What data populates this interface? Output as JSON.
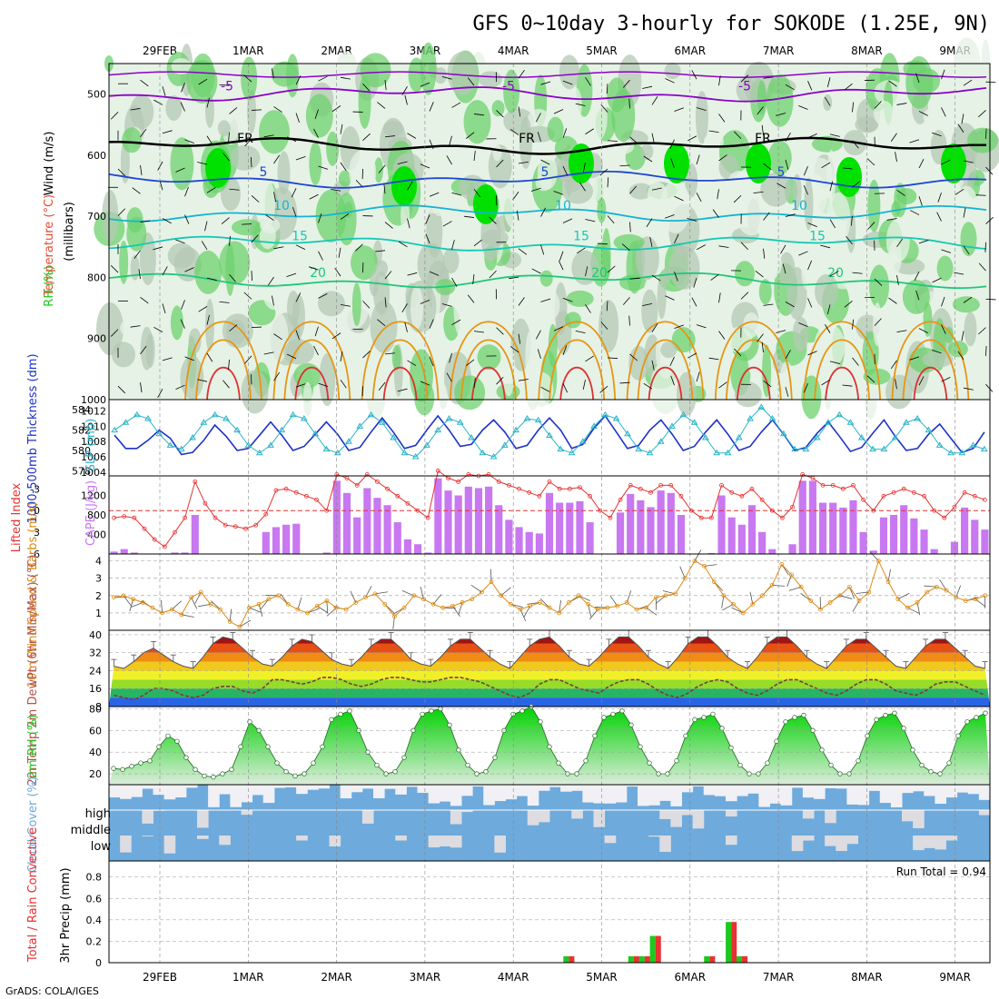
{
  "title": "GFS 0~10day 3-hourly for SOKODE (1.25E, 9N)",
  "credit": "GrADS: COLA/IGES",
  "dates": [
    "29FEB",
    "1MAR",
    "2MAR",
    "3MAR",
    "4MAR",
    "5MAR",
    "6MAR",
    "7MAR",
    "8MAR",
    "9MAR"
  ],
  "colors": {
    "rh_light": "#e6f2e6",
    "rh_mid": "#b4c8b4",
    "rh_green": "#6ed26e",
    "rh_bright": "#00e100",
    "wind_purple": "#8c00c8",
    "temp_blue": "#1e46d2",
    "temp_cyan": "#14b4d2",
    "temp_teal": "#14c8b4",
    "temp_green": "#1ec878",
    "temp_orange": "#e69614",
    "temp_red": "#dc3232",
    "thickness": "#1e32c8",
    "slp": "#28b4c8",
    "lifted": "#e63232",
    "cape": "#c878f0",
    "wind10": "#dc8c14",
    "rh2m": "#00c800",
    "cloud": "#6eaadc",
    "precip_total": "#1ec81e",
    "precip_conv": "#e63232"
  },
  "chart_data": [
    {
      "type": "heatmap",
      "name_labels": {
        "rh": "RH (%)",
        "temp": "Temperature (°C)",
        "wind": "Wind (m/s)",
        "ylabel": "(millibars)"
      },
      "ylim": [
        1000,
        450
      ],
      "y_ticks": [
        500,
        600,
        700,
        800,
        900,
        1000
      ],
      "isotherms": [
        {
          "value": -5,
          "label": "-5",
          "level": 500
        },
        {
          "value": 0,
          "label": "FR",
          "level": 585
        },
        {
          "value": 5,
          "label": "5",
          "level": 640
        },
        {
          "value": 10,
          "label": "10",
          "level": 695
        },
        {
          "value": 15,
          "label": "15",
          "level": 745
        },
        {
          "value": 20,
          "label": "20",
          "level": 805
        }
      ]
    },
    {
      "type": "line",
      "ylabel_left": "1000-500mb Thickness (dm)",
      "ylabel_right": "SLP (mb)",
      "thickness_ticks": [
        578,
        580,
        582,
        584
      ],
      "slp_ticks": [
        1004,
        1006,
        1008,
        1010,
        1012
      ],
      "thickness": [
        581.5,
        580.2,
        580.2,
        581.0,
        582.0,
        581.2,
        579.6,
        579.8,
        581.0,
        582.5,
        581.4,
        580.0,
        580.2,
        581.5,
        582.8,
        581.5,
        580.0,
        580.4,
        581.6,
        582.8,
        581.6,
        580.0,
        580.3,
        581.8,
        583.2,
        581.8,
        580.2,
        580.5,
        582.0,
        583.4,
        582.0,
        580.4,
        580.6,
        582.0,
        583.0,
        581.8,
        580.2,
        580.5,
        582.0,
        583.2,
        582.0,
        580.2,
        580.6,
        582.2,
        583.4,
        581.8,
        580.2,
        580.5,
        582.0,
        583.0,
        581.6,
        580.0,
        580.4,
        581.8,
        583.0,
        581.6,
        580.0,
        580.4,
        581.8,
        583.0,
        581.6,
        580.0,
        580.3,
        581.7,
        582.8,
        581.4,
        579.9,
        580.3,
        581.7,
        583.0,
        581.4,
        580.0,
        580.2,
        581.6,
        582.6,
        581.2,
        579.8,
        580.2,
        581.8
      ],
      "slp": [
        1009.5,
        1010.5,
        1011.5,
        1011.0,
        1009.0,
        1007.5,
        1007.0,
        1008.5,
        1010.5,
        1011.5,
        1011.0,
        1009.5,
        1007.5,
        1006.5,
        1007.5,
        1009.5,
        1011.5,
        1011.0,
        1009.0,
        1007.0,
        1006.5,
        1008.0,
        1010.0,
        1011.5,
        1010.5,
        1008.5,
        1006.5,
        1006.0,
        1007.5,
        1009.5,
        1011.0,
        1010.5,
        1008.5,
        1006.5,
        1006.0,
        1007.5,
        1009.5,
        1011.0,
        1010.8,
        1008.8,
        1007.0,
        1006.5,
        1008.0,
        1010.0,
        1011.5,
        1011.0,
        1009.0,
        1007.0,
        1006.5,
        1008.0,
        1010.0,
        1011.5,
        1010.5,
        1008.5,
        1006.5,
        1006.5,
        1008.5,
        1011.0,
        1012.5,
        1011.0,
        1009.0,
        1007.0,
        1007.0,
        1008.5,
        1010.5,
        1011.5,
        1010.5,
        1008.5,
        1007.0,
        1007.0,
        1008.5,
        1010.5,
        1011.0,
        1009.5,
        1007.5,
        1006.5,
        1006.5,
        1007.5,
        1007.0
      ]
    },
    {
      "type": "bar",
      "ylabel_left": "Lifted Index",
      "ylabel_right": "CAPE (J/kg)",
      "li_ticks": [
        -3,
        0,
        3,
        6
      ],
      "cape_ticks": [
        400,
        800,
        1200
      ],
      "cape": [
        50,
        100,
        30,
        0,
        0,
        0,
        30,
        30,
        800,
        0,
        0,
        0,
        0,
        0,
        0,
        450,
        550,
        600,
        620,
        0,
        0,
        30,
        1500,
        1250,
        750,
        1350,
        1150,
        1000,
        650,
        300,
        200,
        30,
        1550,
        1300,
        1200,
        1380,
        1350,
        1380,
        1000,
        700,
        550,
        450,
        420,
        1250,
        1050,
        1050,
        1080,
        650,
        0,
        0,
        850,
        1230,
        1100,
        960,
        1300,
        1250,
        800,
        0,
        0,
        20,
        1200,
        750,
        600,
        1000,
        450,
        100,
        0,
        200,
        1500,
        1500,
        1050,
        1050,
        950,
        1100,
        450,
        70,
        750,
        800,
        1000,
        730,
        500,
        100,
        0,
        250,
        950,
        700,
        500
      ],
      "lifted_index": [
        1.0,
        0.8,
        1.0,
        2.5,
        4.0,
        5.0,
        3.0,
        1.0,
        -4.0,
        -1.0,
        1.0,
        2.0,
        2.2,
        2.5,
        2.0,
        0.5,
        -2.8,
        -3.0,
        -2.5,
        -2.0,
        -1.5,
        0.0,
        -5.0,
        -4.5,
        -3.5,
        -5.0,
        -4.0,
        -3.0,
        -2.0,
        -1.0,
        0.0,
        1.0,
        -5.5,
        -4.5,
        -4.0,
        -5.0,
        -4.8,
        -5.0,
        -4.0,
        -3.5,
        -3.0,
        -2.5,
        -2.0,
        -4.0,
        -3.0,
        -3.0,
        -3.2,
        -2.0,
        0.0,
        1.0,
        -1.5,
        -3.5,
        -3.0,
        -2.5,
        -3.5,
        -3.5,
        -2.0,
        0.0,
        1.0,
        1.0,
        -3.5,
        -2.5,
        -2.0,
        -3.0,
        -1.5,
        0.0,
        1.0,
        -0.5,
        -5.0,
        -4.5,
        -3.5,
        -3.5,
        -3.0,
        -3.5,
        -1.5,
        0.0,
        -2.0,
        -2.5,
        -3.0,
        -2.5,
        -2.0,
        0.0,
        1.0,
        -0.5,
        -2.5,
        -2.0,
        -1.5
      ]
    },
    {
      "type": "line",
      "ylabel": "10m Wind Speed & Barbs (m/s)",
      "y_ticks": [
        1,
        2,
        3,
        4
      ],
      "ylim": [
        0,
        4.4
      ],
      "speed": [
        1.9,
        2.0,
        1.8,
        1.6,
        1.3,
        1.0,
        1.2,
        0.9,
        1.9,
        2.2,
        1.5,
        1.2,
        0.5,
        0.2,
        1.3,
        1.5,
        1.8,
        2.0,
        1.5,
        1.2,
        1.0,
        1.4,
        1.7,
        1.3,
        1.2,
        1.6,
        1.9,
        2.1,
        1.5,
        0.8,
        1.3,
        2.0,
        1.8,
        1.5,
        1.3,
        1.4,
        1.6,
        1.8,
        2.2,
        2.8,
        2.0,
        1.5,
        1.2,
        1.4,
        1.6,
        1.3,
        1.0,
        1.6,
        2.0,
        1.5,
        1.2,
        1.3,
        1.4,
        1.6,
        1.2,
        1.3,
        1.9,
        2.0,
        2.1,
        3.0,
        4.0,
        3.7,
        2.8,
        2.0,
        1.5,
        1.0,
        1.5,
        2.0,
        2.6,
        3.8,
        3.2,
        2.5,
        1.7,
        1.2,
        1.6,
        2.0,
        2.5,
        1.7,
        2.2,
        4.0,
        2.8,
        1.8,
        1.3,
        1.6,
        2.2,
        2.5,
        2.3,
        1.9,
        1.7,
        1.8,
        2.0
      ]
    },
    {
      "type": "area",
      "ylabel": "2m Temp 2m DewPt (6hr Min/Max) (°C)",
      "y_ticks": [
        8,
        16,
        24,
        32,
        40
      ],
      "ylim": [
        8,
        42
      ],
      "temp": [
        26,
        25,
        28,
        32,
        34,
        31,
        28,
        26,
        25,
        30,
        36,
        39,
        38,
        34,
        30,
        27,
        26,
        30,
        35,
        38,
        37,
        33,
        29,
        27,
        26,
        30,
        35,
        38,
        38,
        34,
        29,
        27,
        26,
        30,
        35,
        38,
        38,
        34,
        30,
        27,
        25,
        30,
        35,
        38,
        39,
        35,
        30,
        27,
        26,
        30,
        35,
        39,
        39,
        35,
        30,
        27,
        25,
        30,
        36,
        39,
        39,
        35,
        30,
        27,
        25,
        30,
        36,
        39,
        39,
        35,
        30,
        27,
        25,
        30,
        35,
        38,
        38,
        34,
        30,
        26,
        25,
        30,
        35,
        38,
        38,
        34,
        30,
        26,
        25
      ],
      "dewpt": [
        13,
        12,
        11,
        13,
        16,
        16,
        15,
        13,
        12,
        13,
        16,
        17,
        17,
        15,
        14,
        16,
        20,
        20,
        19,
        18,
        19,
        21,
        21,
        20,
        18,
        17,
        18,
        20,
        21,
        21,
        20,
        19,
        19,
        20,
        21,
        21,
        20,
        19,
        17,
        15,
        13,
        12,
        14,
        18,
        20,
        20,
        18,
        16,
        15,
        14,
        17,
        19,
        20,
        20,
        18,
        15,
        13,
        12,
        14,
        17,
        19,
        20,
        19,
        16,
        14,
        13,
        15,
        18,
        20,
        20,
        18,
        16,
        14,
        13,
        15,
        18,
        20,
        20,
        18,
        15,
        14,
        13,
        15,
        18,
        19,
        19,
        17,
        15,
        13
      ]
    },
    {
      "type": "area",
      "ylabel": "2m RH (%)",
      "y_ticks": [
        20,
        40,
        60,
        80
      ],
      "ylim": [
        10,
        82
      ],
      "rh": [
        25,
        24,
        27,
        30,
        32,
        45,
        55,
        50,
        35,
        24,
        18,
        17,
        20,
        24,
        45,
        68,
        60,
        45,
        30,
        22,
        18,
        20,
        30,
        45,
        70,
        75,
        78,
        60,
        40,
        28,
        20,
        22,
        35,
        60,
        75,
        78,
        80,
        65,
        42,
        28,
        20,
        22,
        35,
        60,
        75,
        78,
        82,
        68,
        45,
        30,
        20,
        20,
        32,
        55,
        72,
        75,
        78,
        65,
        45,
        30,
        20,
        20,
        32,
        55,
        70,
        72,
        75,
        62,
        44,
        28,
        20,
        20,
        30,
        50,
        68,
        72,
        74,
        60,
        42,
        28,
        20,
        20,
        32,
        55,
        70,
        74,
        76,
        62,
        42,
        28,
        22,
        20,
        30,
        55,
        68,
        72,
        76
      ]
    },
    {
      "type": "heatmap",
      "ylabel": "Cloud Cover (%)",
      "levels": [
        "high",
        "middle",
        "low"
      ]
    },
    {
      "type": "bar",
      "ylabel_left": "Total / Rain Convective",
      "ylabel_right": "3hr Precip (mm)",
      "y_ticks": [
        0,
        0.2,
        0.4,
        0.6,
        0.8
      ],
      "ylim": [
        0,
        0.95
      ],
      "run_total_text": "Run Total = 0.94",
      "precip": [
        {
          "i": 21,
          "v": 0.06
        },
        {
          "i": 27,
          "v": 0.06
        },
        {
          "i": 28,
          "v": 0.06
        },
        {
          "i": 29,
          "v": 0.25
        },
        {
          "i": 34,
          "v": 0.06
        },
        {
          "i": 36,
          "v": 0.38
        },
        {
          "i": 37,
          "v": 0.06
        }
      ]
    }
  ]
}
